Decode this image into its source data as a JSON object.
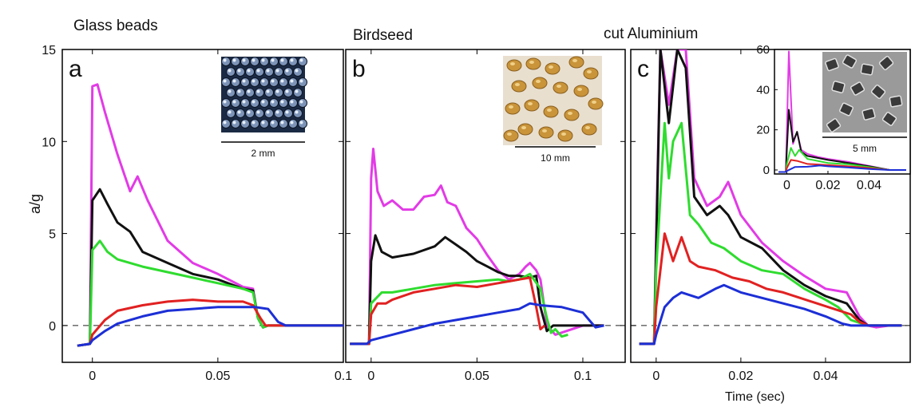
{
  "figure": {
    "ylabel": "a/g",
    "xlabel": "Time (sec)"
  },
  "chart_data": [
    {
      "type": "line",
      "panel": "a",
      "title": "Glass beads",
      "xlabel": "",
      "ylabel": "a/g",
      "xlim": [
        -0.012,
        0.1
      ],
      "ylim": [
        -2,
        15
      ],
      "xticks": [
        0,
        0.05,
        0.1
      ],
      "xtick_labels": [
        "0",
        "0.05",
        "0.1"
      ],
      "yticks": [
        0,
        5,
        10,
        15
      ],
      "ytick_labels": [
        "0",
        "5",
        "10",
        "15"
      ],
      "zero_line": "dashed",
      "inset_image": {
        "scale_bar": "2 mm",
        "description_icon": "glass-beads-photo"
      },
      "series": [
        {
          "color": "#e23be6",
          "x": [
            -0.006,
            -0.001,
            0,
            0.002,
            0.005,
            0.01,
            0.015,
            0.018,
            0.022,
            0.03,
            0.04,
            0.05,
            0.06,
            0.064,
            0.066,
            0.068,
            0.07,
            0.1
          ],
          "y": [
            -1.1,
            -1.0,
            13.0,
            13.1,
            11.6,
            9.3,
            7.3,
            8.1,
            6.8,
            4.6,
            3.4,
            2.8,
            2.1,
            2.0,
            0.4,
            -0.1,
            0.0,
            0.0
          ]
        },
        {
          "color": "#111111",
          "x": [
            -0.006,
            -0.001,
            0,
            0.003,
            0.006,
            0.01,
            0.015,
            0.02,
            0.03,
            0.04,
            0.05,
            0.06,
            0.064,
            0.066,
            0.068,
            0.07,
            0.1
          ],
          "y": [
            -1.1,
            -1.0,
            6.8,
            7.4,
            6.6,
            5.6,
            5.1,
            4.0,
            3.4,
            2.8,
            2.5,
            2.0,
            1.9,
            0.4,
            -0.1,
            0.0,
            0.0
          ]
        },
        {
          "color": "#2fdc2f",
          "x": [
            -0.006,
            -0.001,
            0,
            0.003,
            0.006,
            0.01,
            0.02,
            0.03,
            0.04,
            0.05,
            0.06,
            0.064,
            0.066,
            0.068,
            0.07,
            0.1
          ],
          "y": [
            -1.1,
            -1.0,
            4.1,
            4.6,
            4.0,
            3.6,
            3.2,
            2.9,
            2.6,
            2.3,
            2.0,
            1.8,
            0.4,
            -0.1,
            0.0,
            0.0
          ]
        },
        {
          "color": "#e12121",
          "x": [
            -0.006,
            -0.001,
            0,
            0.005,
            0.01,
            0.02,
            0.03,
            0.04,
            0.05,
            0.06,
            0.064,
            0.067,
            0.069,
            0.071,
            0.1
          ],
          "y": [
            -1.1,
            -1.0,
            -0.5,
            0.3,
            0.8,
            1.1,
            1.3,
            1.4,
            1.3,
            1.3,
            1.1,
            0.4,
            0.0,
            0.0,
            0.0
          ]
        },
        {
          "color": "#1c2fd6",
          "x": [
            -0.006,
            -0.001,
            0,
            0.005,
            0.01,
            0.02,
            0.03,
            0.04,
            0.05,
            0.06,
            0.065,
            0.07,
            0.074,
            0.077,
            0.1
          ],
          "y": [
            -1.1,
            -1.0,
            -0.8,
            -0.3,
            0.1,
            0.5,
            0.8,
            0.9,
            1.0,
            1.0,
            1.0,
            0.9,
            0.2,
            0.0,
            0.0
          ]
        }
      ]
    },
    {
      "type": "line",
      "panel": "b",
      "title": "Birdseed",
      "xlabel": "",
      "ylabel": "",
      "xlim": [
        -0.012,
        0.12
      ],
      "ylim": [
        -2,
        15
      ],
      "xticks": [
        0,
        0.05,
        0.1
      ],
      "xtick_labels": [
        "0",
        "0.05",
        "0.1"
      ],
      "yticks": [
        0,
        5,
        10,
        15
      ],
      "zero_line": "dashed",
      "inset_image": {
        "scale_bar": "10 mm",
        "description_icon": "birdseed-photo"
      },
      "series": [
        {
          "color": "#e23be6",
          "x": [
            -0.01,
            -0.001,
            0,
            0.001,
            0.003,
            0.006,
            0.01,
            0.015,
            0.02,
            0.025,
            0.03,
            0.033,
            0.036,
            0.04,
            0.045,
            0.05,
            0.055,
            0.06,
            0.065,
            0.07,
            0.073,
            0.075,
            0.078,
            0.08,
            0.083,
            0.087,
            0.1,
            0.11
          ],
          "y": [
            -1.0,
            -1.0,
            8.0,
            9.6,
            7.3,
            6.5,
            6.8,
            6.3,
            6.3,
            7.0,
            7.1,
            7.6,
            6.7,
            6.5,
            5.3,
            4.7,
            3.8,
            3.0,
            2.5,
            2.8,
            3.2,
            3.4,
            3.0,
            2.5,
            0.0,
            -0.5,
            0.0,
            0.0
          ]
        },
        {
          "color": "#111111",
          "x": [
            -0.01,
            -0.001,
            0,
            0.002,
            0.005,
            0.01,
            0.02,
            0.03,
            0.035,
            0.04,
            0.045,
            0.05,
            0.055,
            0.06,
            0.065,
            0.07,
            0.075,
            0.078,
            0.08,
            0.083,
            0.086,
            0.1,
            0.11
          ],
          "y": [
            -1.0,
            -1.0,
            3.5,
            4.9,
            4.0,
            3.7,
            3.9,
            4.3,
            4.8,
            4.4,
            4.0,
            3.5,
            3.2,
            2.9,
            2.7,
            2.7,
            2.6,
            2.7,
            1.0,
            -0.3,
            0.0,
            0.0,
            0.0
          ]
        },
        {
          "color": "#2fdc2f",
          "x": [
            -0.01,
            -0.001,
            0,
            0.005,
            0.01,
            0.02,
            0.03,
            0.04,
            0.05,
            0.06,
            0.065,
            0.07,
            0.075,
            0.08,
            0.083,
            0.085,
            0.087,
            0.09,
            0.093
          ],
          "y": [
            -1.0,
            -1.0,
            1.2,
            1.8,
            1.8,
            2.0,
            2.2,
            2.3,
            2.4,
            2.5,
            2.4,
            2.5,
            2.8,
            2.0,
            0.4,
            -0.4,
            -0.2,
            -0.6,
            -0.5
          ]
        },
        {
          "color": "#e12121",
          "x": [
            -0.01,
            -0.001,
            0,
            0.003,
            0.007,
            0.01,
            0.02,
            0.03,
            0.04,
            0.05,
            0.06,
            0.065,
            0.07,
            0.075,
            0.078,
            0.08,
            0.082
          ],
          "y": [
            -1.0,
            -1.0,
            0.6,
            1.2,
            1.2,
            1.4,
            1.8,
            2.0,
            2.2,
            2.1,
            2.3,
            2.4,
            2.5,
            2.6,
            1.0,
            -0.2,
            0.0
          ]
        },
        {
          "color": "#1c2fd6",
          "x": [
            -0.01,
            -0.002,
            0,
            0.01,
            0.02,
            0.03,
            0.04,
            0.05,
            0.06,
            0.07,
            0.075,
            0.08,
            0.09,
            0.1,
            0.103,
            0.106,
            0.11
          ],
          "y": [
            -1.0,
            -1.0,
            -0.8,
            -0.5,
            -0.2,
            0.1,
            0.3,
            0.5,
            0.7,
            0.9,
            1.2,
            1.1,
            1.0,
            0.7,
            0.3,
            -0.1,
            0.0
          ]
        }
      ]
    },
    {
      "type": "line",
      "panel": "c",
      "title": "cut Aluminium",
      "xlabel": "Time (sec)",
      "ylabel": "",
      "xlim": [
        -0.006,
        0.06
      ],
      "ylim": [
        -2,
        15
      ],
      "xticks": [
        0,
        0.02,
        0.04
      ],
      "xtick_labels": [
        "0",
        "0.02",
        "0.04"
      ],
      "yticks": [
        0,
        5,
        10,
        15
      ],
      "zero_line": "dashed",
      "series": [
        {
          "color": "#e23be6",
          "x": [
            -0.004,
            -0.0005,
            0,
            0.001,
            0.003,
            0.005,
            0.007,
            0.009,
            0.012,
            0.015,
            0.017,
            0.02,
            0.025,
            0.03,
            0.035,
            0.04,
            0.045,
            0.048,
            0.05,
            0.052,
            0.055,
            0.058
          ],
          "y": [
            -1.0,
            -1.0,
            5.0,
            15.0,
            12.0,
            15.0,
            15.0,
            8.0,
            6.5,
            7.0,
            7.8,
            6.0,
            4.5,
            3.5,
            2.7,
            2.0,
            1.8,
            0.5,
            0.0,
            -0.1,
            0.0,
            0.0
          ]
        },
        {
          "color": "#111111",
          "x": [
            -0.004,
            -0.0005,
            0,
            0.001,
            0.003,
            0.005,
            0.007,
            0.009,
            0.012,
            0.015,
            0.017,
            0.02,
            0.025,
            0.03,
            0.035,
            0.04,
            0.045,
            0.048,
            0.05,
            0.052,
            0.058
          ],
          "y": [
            -1.0,
            -1.0,
            4.0,
            15.0,
            11.0,
            15.0,
            14.0,
            7.0,
            6.0,
            6.5,
            6.0,
            4.8,
            4.2,
            3.0,
            2.2,
            1.6,
            1.2,
            0.3,
            0.0,
            0.0,
            0.0
          ]
        },
        {
          "color": "#2fdc2f",
          "x": [
            -0.004,
            -0.0005,
            0,
            0.002,
            0.003,
            0.004,
            0.006,
            0.008,
            0.01,
            0.013,
            0.016,
            0.02,
            0.025,
            0.03,
            0.035,
            0.04,
            0.043,
            0.046,
            0.05,
            0.058
          ],
          "y": [
            -1.0,
            -1.0,
            3.0,
            11.0,
            8.0,
            10.0,
            11.0,
            6.0,
            5.5,
            4.5,
            4.2,
            3.5,
            3.0,
            2.8,
            2.0,
            1.4,
            1.0,
            0.3,
            0.0,
            0.0
          ]
        },
        {
          "color": "#e12121",
          "x": [
            -0.004,
            -0.0005,
            0,
            0.002,
            0.004,
            0.006,
            0.008,
            0.01,
            0.014,
            0.018,
            0.022,
            0.026,
            0.03,
            0.034,
            0.038,
            0.042,
            0.046,
            0.048,
            0.05,
            0.058
          ],
          "y": [
            -1.0,
            -1.0,
            1.0,
            5.0,
            3.5,
            4.8,
            3.5,
            3.2,
            3.0,
            2.6,
            2.4,
            2.0,
            1.8,
            1.5,
            1.2,
            0.9,
            0.6,
            0.2,
            0.0,
            0.0
          ]
        },
        {
          "color": "#1c2fd6",
          "x": [
            -0.004,
            -0.0005,
            0,
            0.002,
            0.004,
            0.006,
            0.01,
            0.014,
            0.016,
            0.02,
            0.025,
            0.03,
            0.035,
            0.04,
            0.044,
            0.046,
            0.058
          ],
          "y": [
            -1.0,
            -1.0,
            -0.5,
            1.0,
            1.5,
            1.8,
            1.5,
            2.0,
            2.2,
            1.8,
            1.5,
            1.2,
            0.9,
            0.5,
            0.1,
            0.0,
            0.0
          ]
        }
      ],
      "inset_chart": {
        "type": "line",
        "xlim": [
          -0.006,
          0.06
        ],
        "ylim": [
          -2,
          60
        ],
        "xticks": [
          0,
          0.02,
          0.04
        ],
        "xtick_labels": [
          "0",
          "0.02",
          "0.04"
        ],
        "yticks": [
          0,
          20,
          40,
          60
        ],
        "ytick_labels": [
          "0",
          "20",
          "40",
          "60"
        ],
        "inset_image": {
          "scale_bar": "5 mm",
          "description_icon": "aluminium-pieces-photo"
        },
        "series": [
          {
            "color": "#e23be6",
            "x": [
              -0.004,
              -0.0005,
              0,
              0.001,
              0.003,
              0.005,
              0.007,
              0.01,
              0.015,
              0.02,
              0.03,
              0.04,
              0.05,
              0.058
            ],
            "y": [
              -1.0,
              -1.0,
              20.0,
              59.0,
              13.0,
              19.0,
              10.0,
              8.0,
              6.5,
              5.5,
              4.0,
              2.0,
              0.0,
              0.0
            ]
          },
          {
            "color": "#111111",
            "x": [
              -0.004,
              -0.0005,
              0,
              0.001,
              0.003,
              0.005,
              0.007,
              0.01,
              0.015,
              0.02,
              0.03,
              0.04,
              0.05,
              0.058
            ],
            "y": [
              -1.0,
              -1.0,
              10.0,
              30.0,
              14.0,
              19.0,
              9.0,
              7.0,
              6.0,
              5.0,
              3.5,
              1.8,
              0.0,
              0.0
            ]
          },
          {
            "color": "#2fdc2f",
            "x": [
              -0.004,
              -0.0005,
              0,
              0.002,
              0.004,
              0.006,
              0.01,
              0.015,
              0.02,
              0.03,
              0.04,
              0.05,
              0.058
            ],
            "y": [
              -1.0,
              -1.0,
              3.0,
              11.0,
              7.0,
              10.0,
              5.5,
              4.5,
              3.5,
              2.8,
              1.4,
              0.0,
              0.0
            ]
          },
          {
            "color": "#e12121",
            "x": [
              -0.004,
              -0.0005,
              0,
              0.002,
              0.005,
              0.01,
              0.02,
              0.03,
              0.04,
              0.05,
              0.058
            ],
            "y": [
              -1.0,
              -1.0,
              1.0,
              5.0,
              4.5,
              3.0,
              2.4,
              1.8,
              1.0,
              0.0,
              0.0
            ]
          },
          {
            "color": "#1c2fd6",
            "x": [
              -0.004,
              -0.0005,
              0,
              0.004,
              0.01,
              0.016,
              0.02,
              0.03,
              0.04,
              0.05,
              0.058
            ],
            "y": [
              -1.0,
              -1.0,
              -0.5,
              1.5,
              1.6,
              2.2,
              1.8,
              1.2,
              0.5,
              0.0,
              0.0
            ]
          }
        ]
      }
    }
  ]
}
